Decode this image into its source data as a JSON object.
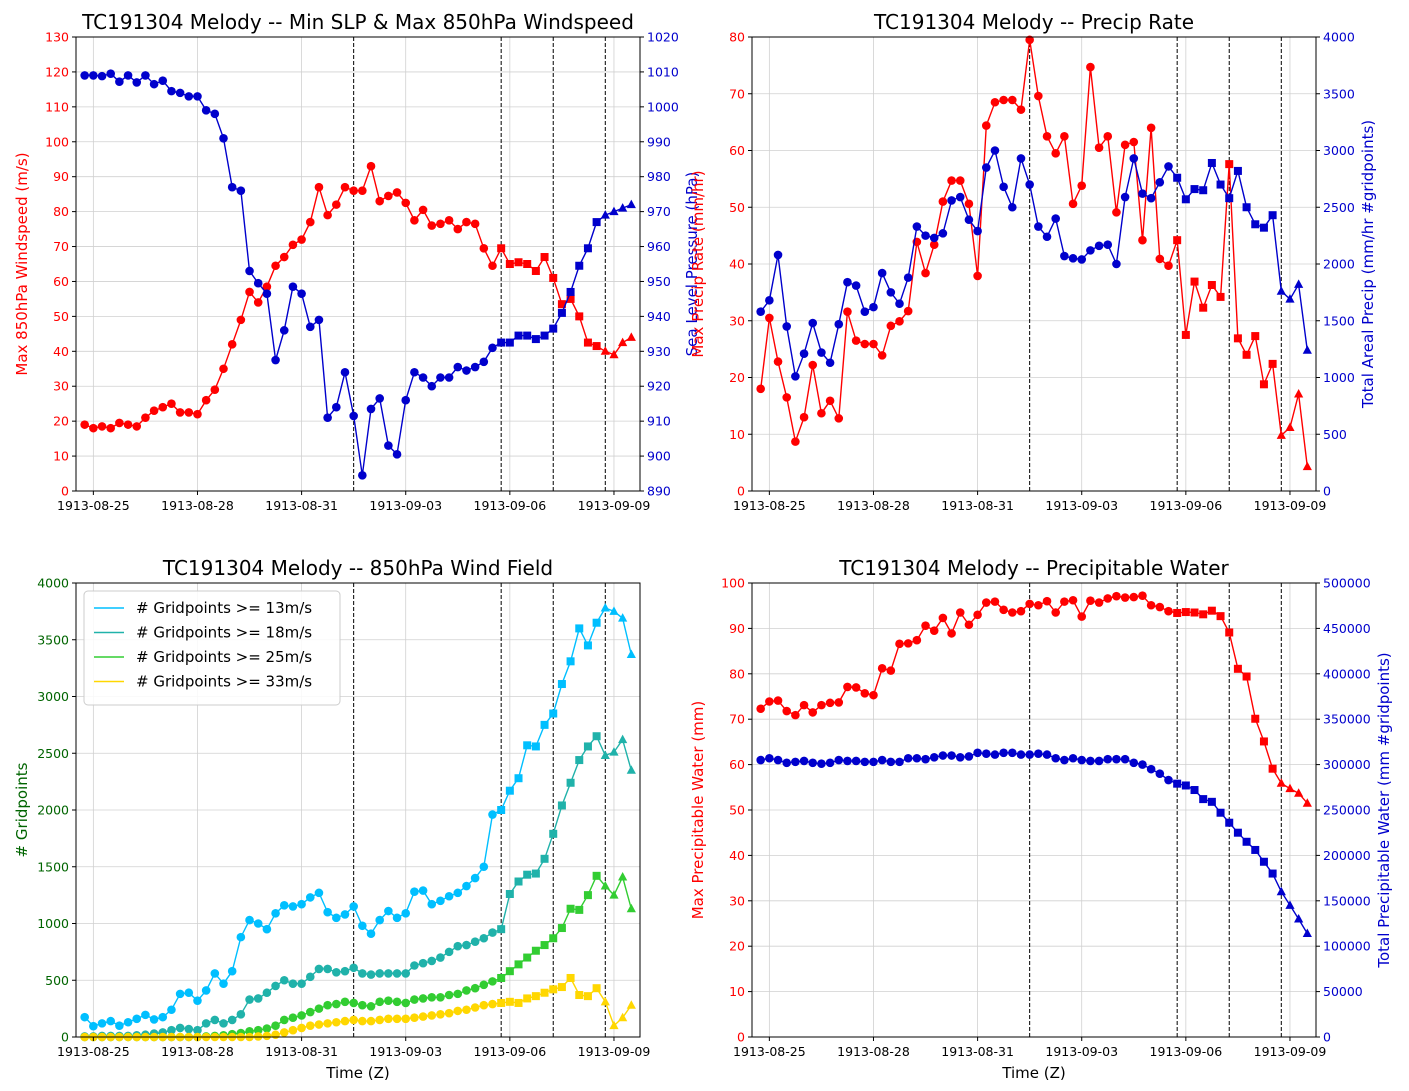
{
  "figure": {
    "colors": {
      "red": "#ff0000",
      "blue": "#0000cc",
      "green_axis": "#006400",
      "cyan": "#00bfff",
      "teal": "#20b2aa",
      "green": "#32cd32",
      "gold": "#ffd700"
    },
    "event_lines": [
      "1913-09-01T12",
      "1913-09-05T18",
      "1913-09-07T06",
      "1913-09-08T18"
    ]
  },
  "chart_data": [
    {
      "type": "line",
      "title": "TC191304 Melody -- Min SLP & Max 850hPa Windspeed",
      "xlabel": "",
      "ylabel": "Max 850hPa Windspeed (m/s)",
      "y2label": "Sea Level Pressure (hPa)",
      "x_start": "1913-08-24T18",
      "x_step_hours": 6,
      "xlim": [
        "1913-08-24T12",
        "1913-09-09T18"
      ],
      "ylim": [
        0,
        130
      ],
      "y2lim": [
        890,
        1020
      ],
      "xticks": [
        "1913-08-25",
        "1913-08-28",
        "1913-08-31",
        "1913-09-03",
        "1913-09-06",
        "1913-09-09"
      ],
      "yticks": [
        0,
        10,
        20,
        30,
        40,
        50,
        60,
        70,
        80,
        90,
        100,
        110,
        120,
        130
      ],
      "y2ticks": [
        890,
        900,
        910,
        920,
        930,
        940,
        950,
        960,
        970,
        980,
        990,
        1000,
        1010,
        1020
      ],
      "grid": true,
      "series": [
        {
          "axis": "left",
          "color": "red",
          "values": [
            19,
            18,
            18.5,
            18,
            19.5,
            19,
            18.5,
            21,
            23,
            24,
            25,
            22.5,
            22.5,
            22,
            26,
            29,
            35,
            42,
            49,
            57,
            54,
            58.5,
            64.5,
            67,
            70.5,
            72,
            77,
            87,
            79,
            82,
            87,
            86,
            86,
            93,
            83,
            84.5,
            85.5,
            82.5,
            77.5,
            80.5,
            76,
            76.5,
            77.5,
            75,
            77,
            76.5,
            69.5,
            64.5,
            69.5,
            65,
            65.5,
            65,
            63,
            67,
            61,
            53.5,
            55,
            50,
            42.5,
            41.5,
            40,
            39,
            42.5,
            44
          ]
        },
        {
          "axis": "right",
          "color": "blue",
          "values": [
            1009,
            1009,
            1008.8,
            1009.5,
            1007.2,
            1009,
            1007,
            1009,
            1006.5,
            1007.5,
            1004.5,
            1004,
            1003,
            1003,
            999,
            998,
            991,
            977,
            976,
            953,
            949.5,
            946.5,
            927.5,
            936,
            948.5,
            946.5,
            937,
            939,
            911,
            914,
            924,
            911.5,
            894.5,
            913.5,
            916.5,
            903,
            900.5,
            916,
            924,
            922.5,
            920,
            922.5,
            922.5,
            925.5,
            924.5,
            925.5,
            927,
            931,
            932.5,
            932.5,
            934.5,
            934.5,
            933.5,
            934.5,
            936.5,
            941,
            947,
            954.5,
            959.5,
            967,
            969,
            970,
            971,
            972
          ]
        }
      ]
    },
    {
      "type": "line",
      "title": "TC191304 Melody -- Precip Rate",
      "xlabel": "",
      "ylabel": "Max Precip Rate (mm/hr)",
      "y2label": "Total Areal Precip (mm/hr #gridpoints)",
      "x_start": "1913-08-24T18",
      "x_step_hours": 6,
      "xlim": [
        "1913-08-24T12",
        "1913-09-09T18"
      ],
      "ylim": [
        0,
        80
      ],
      "y2lim": [
        0,
        4000
      ],
      "xticks": [
        "1913-08-25",
        "1913-08-28",
        "1913-08-31",
        "1913-09-03",
        "1913-09-06",
        "1913-09-09"
      ],
      "yticks": [
        0,
        10,
        20,
        30,
        40,
        50,
        60,
        70,
        80
      ],
      "y2ticks": [
        0,
        500,
        1000,
        1500,
        2000,
        2500,
        3000,
        3500,
        4000
      ],
      "grid": true,
      "series": [
        {
          "axis": "left",
          "color": "red",
          "values": [
            18,
            30.5,
            22.8,
            16.5,
            8.7,
            13,
            22.2,
            13.7,
            15.9,
            12.8,
            31.6,
            26.5,
            25.9,
            25.9,
            23.9,
            29.1,
            29.9,
            31.7,
            43.9,
            38.4,
            43.4,
            51,
            54.7,
            54.7,
            50.6,
            37.9,
            64.4,
            68.5,
            68.9,
            68.9,
            67.2,
            79.5,
            69.6,
            62.5,
            59.5,
            62.5,
            50.6,
            53.8,
            74.7,
            60.5,
            62.5,
            49.1,
            61,
            61.5,
            44.2,
            64,
            40.9,
            39.7,
            44.2,
            27.5,
            36.9,
            32.3,
            36.3,
            34.2,
            57.6,
            26.9,
            24,
            27.3,
            18.8,
            22.4,
            9.8,
            11.2,
            17.1,
            4.3
          ]
        },
        {
          "axis": "right",
          "color": "blue",
          "values": [
            1580,
            1680,
            2080,
            1450,
            1010,
            1210,
            1480,
            1220,
            1130,
            1470,
            1840,
            1810,
            1580,
            1620,
            1920,
            1750,
            1650,
            1880,
            2330,
            2250,
            2230,
            2270,
            2560,
            2590,
            2390,
            2290,
            2850,
            3000,
            2680,
            2500,
            2930,
            2700,
            2330,
            2240,
            2400,
            2070,
            2050,
            2040,
            2120,
            2160,
            2170,
            2000,
            2590,
            2930,
            2620,
            2580,
            2720,
            2860,
            2760,
            2570,
            2660,
            2650,
            2890,
            2700,
            2580,
            2820,
            2500,
            2350,
            2320,
            2430,
            1760,
            1690,
            1820,
            1240
          ]
        }
      ]
    },
    {
      "type": "line",
      "title": "TC191304 Melody -- 850hPa Wind Field",
      "xlabel": "Time (Z)",
      "ylabel": "# Gridpoints",
      "x_start": "1913-08-24T18",
      "x_step_hours": 6,
      "xlim": [
        "1913-08-24T12",
        "1913-09-09T18"
      ],
      "ylim": [
        0,
        4000
      ],
      "xticks": [
        "1913-08-25",
        "1913-08-28",
        "1913-08-31",
        "1913-09-03",
        "1913-09-06",
        "1913-09-09"
      ],
      "yticks": [
        0,
        500,
        1000,
        1500,
        2000,
        2500,
        3000,
        3500,
        4000
      ],
      "grid": true,
      "legend": "top-left",
      "series": [
        {
          "name": "# Gridpoints >= 13m/s",
          "color": "cyan",
          "values": [
            175,
            95,
            120,
            140,
            100,
            130,
            160,
            195,
            155,
            175,
            240,
            380,
            390,
            320,
            410,
            560,
            470,
            580,
            880,
            1030,
            1000,
            950,
            1090,
            1160,
            1150,
            1170,
            1230,
            1270,
            1100,
            1050,
            1080,
            1150,
            980,
            910,
            1030,
            1110,
            1050,
            1090,
            1280,
            1290,
            1170,
            1200,
            1240,
            1270,
            1330,
            1400,
            1500,
            1960,
            2000,
            2170,
            2280,
            2570,
            2560,
            2750,
            2850,
            3110,
            3310,
            3600,
            3450,
            3650,
            3780,
            3750,
            3690,
            3370
          ]
        },
        {
          "name": "# Gridpoints >= 18m/s",
          "color": "teal",
          "values": [
            5,
            5,
            10,
            10,
            10,
            10,
            15,
            20,
            30,
            40,
            60,
            80,
            70,
            60,
            120,
            150,
            120,
            150,
            200,
            330,
            340,
            390,
            450,
            500,
            470,
            470,
            530,
            600,
            600,
            570,
            580,
            610,
            560,
            550,
            560,
            560,
            560,
            560,
            630,
            650,
            670,
            700,
            750,
            800,
            810,
            840,
            870,
            920,
            950,
            1260,
            1370,
            1430,
            1440,
            1570,
            1790,
            2040,
            2240,
            2440,
            2560,
            2650,
            2480,
            2510,
            2620,
            2350
          ]
        },
        {
          "name": "# Gridpoints >= 25m/s",
          "color": "green",
          "values": [
            0,
            0,
            0,
            0,
            0,
            0,
            0,
            0,
            0,
            0,
            0,
            0,
            0,
            0,
            5,
            10,
            15,
            25,
            35,
            50,
            60,
            75,
            100,
            150,
            170,
            190,
            220,
            250,
            280,
            290,
            310,
            300,
            280,
            270,
            310,
            320,
            310,
            300,
            330,
            340,
            350,
            350,
            370,
            380,
            410,
            430,
            460,
            490,
            520,
            580,
            640,
            700,
            760,
            810,
            870,
            960,
            1130,
            1120,
            1250,
            1420,
            1330,
            1250,
            1410,
            1130
          ]
        },
        {
          "name": "# Gridpoints >= 33m/s",
          "color": "gold",
          "values": [
            0,
            0,
            0,
            0,
            0,
            0,
            0,
            0,
            0,
            0,
            0,
            0,
            0,
            0,
            0,
            0,
            0,
            0,
            0,
            0,
            5,
            10,
            20,
            40,
            60,
            80,
            100,
            110,
            120,
            130,
            140,
            150,
            140,
            140,
            150,
            160,
            160,
            160,
            170,
            180,
            190,
            200,
            210,
            230,
            240,
            260,
            280,
            290,
            300,
            310,
            300,
            340,
            360,
            390,
            420,
            440,
            520,
            370,
            360,
            430,
            310,
            100,
            170,
            280
          ]
        }
      ]
    },
    {
      "type": "line",
      "title": "TC191304 Melody -- Precipitable Water",
      "xlabel": "Time (Z)",
      "ylabel": "Max Precipitable Water (mm)",
      "y2label": "Total Precipitable Water (mm #gridpoints)",
      "x_start": "1913-08-24T18",
      "x_step_hours": 6,
      "xlim": [
        "1913-08-24T12",
        "1913-09-09T18"
      ],
      "ylim": [
        0,
        100
      ],
      "y2lim": [
        0,
        500000
      ],
      "xticks": [
        "1913-08-25",
        "1913-08-28",
        "1913-08-31",
        "1913-09-03",
        "1913-09-06",
        "1913-09-09"
      ],
      "yticks": [
        0,
        10,
        20,
        30,
        40,
        50,
        60,
        70,
        80,
        90,
        100
      ],
      "y2ticks": [
        0,
        50000,
        100000,
        150000,
        200000,
        250000,
        300000,
        350000,
        400000,
        450000,
        500000
      ],
      "grid": true,
      "series": [
        {
          "axis": "left",
          "color": "red",
          "values": [
            72.3,
            73.9,
            74.1,
            71.8,
            70.9,
            73.1,
            71.5,
            73.1,
            73.6,
            73.7,
            77.1,
            77,
            75.7,
            75.3,
            81.2,
            80.7,
            86.6,
            86.7,
            87.4,
            90.6,
            89.5,
            92.3,
            88.9,
            93.5,
            90.8,
            93,
            95.7,
            95.9,
            94.1,
            93.5,
            93.8,
            95.4,
            95.1,
            96,
            93.5,
            95.9,
            96.2,
            92.6,
            96.1,
            95.7,
            96.6,
            97.1,
            96.8,
            96.9,
            97.2,
            95.1,
            94.7,
            93.8,
            93.4,
            93.6,
            93.5,
            93.1,
            93.9,
            92.7,
            89.1,
            81.1,
            79.4,
            70.1,
            65.1,
            59.1,
            55.9,
            54.7,
            53.7,
            51.5
          ]
        },
        {
          "axis": "right",
          "color": "blue",
          "values": [
            305000,
            307000,
            305000,
            302000,
            303000,
            304000,
            302000,
            301000,
            302000,
            305000,
            304000,
            304000,
            303000,
            303000,
            305000,
            303000,
            303000,
            307000,
            307000,
            306000,
            308000,
            310000,
            310000,
            308000,
            309000,
            313000,
            312000,
            311000,
            313000,
            313000,
            311000,
            311000,
            312000,
            311000,
            307000,
            305000,
            307000,
            305000,
            304000,
            304000,
            306000,
            306000,
            306000,
            302000,
            300000,
            295000,
            290000,
            283000,
            279000,
            277000,
            272000,
            262000,
            259000,
            247000,
            236000,
            225000,
            215000,
            206000,
            193000,
            180000,
            160000,
            145000,
            130000,
            114000
          ]
        }
      ]
    }
  ]
}
